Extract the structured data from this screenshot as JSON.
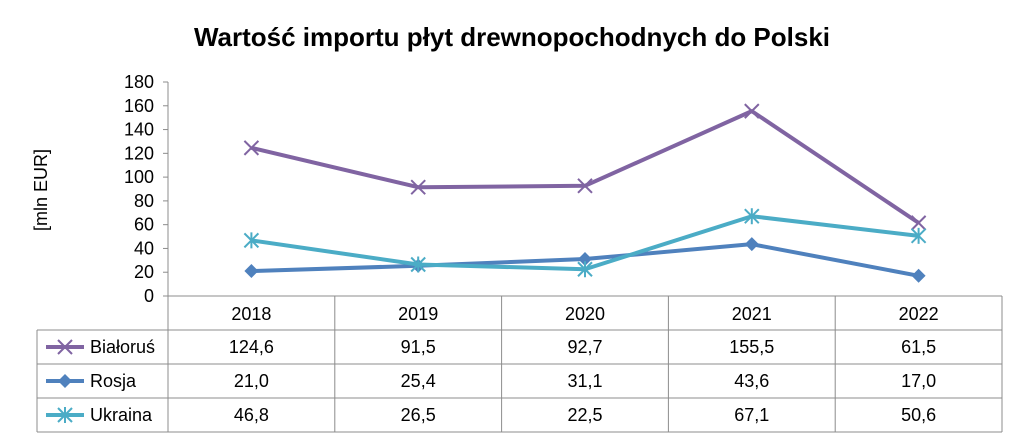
{
  "chart_data": {
    "type": "line",
    "title": "Wartość importu płyt drewnopochodnych do Polski",
    "ylabel": "[mln EUR]",
    "xlabel": "",
    "ylim": [
      0,
      180
    ],
    "ytick_step": 20,
    "categories": [
      "2018",
      "2019",
      "2020",
      "2021",
      "2022"
    ],
    "grid": false,
    "legend": "data-table",
    "series": [
      {
        "name": "Białoruś",
        "values": [
          124.6,
          91.5,
          92.7,
          155.5,
          61.5
        ],
        "labels": [
          "124,6",
          "91,5",
          "92,7",
          "155,5",
          "61,5"
        ],
        "color": "#8064a2",
        "marker": "x"
      },
      {
        "name": "Rosja",
        "values": [
          21.0,
          25.4,
          31.1,
          43.6,
          17.0
        ],
        "labels": [
          "21,0",
          "25,4",
          "31,1",
          "43,6",
          "17,0"
        ],
        "color": "#4f81bd",
        "marker": "diamond"
      },
      {
        "name": "Ukraina",
        "values": [
          46.8,
          26.5,
          22.5,
          67.1,
          50.6
        ],
        "labels": [
          "46,8",
          "26,5",
          "22,5",
          "67,1",
          "50,6"
        ],
        "color": "#4bacc6",
        "marker": "star"
      }
    ]
  }
}
